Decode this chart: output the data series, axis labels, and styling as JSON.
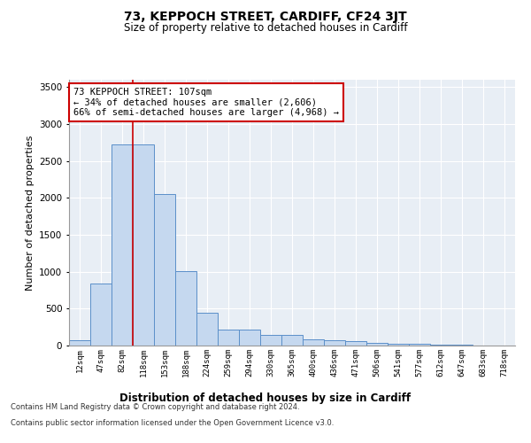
{
  "title": "73, KEPPOCH STREET, CARDIFF, CF24 3JT",
  "subtitle": "Size of property relative to detached houses in Cardiff",
  "xlabel": "Distribution of detached houses by size in Cardiff",
  "ylabel": "Number of detached properties",
  "categories": [
    "12sqm",
    "47sqm",
    "82sqm",
    "118sqm",
    "153sqm",
    "188sqm",
    "224sqm",
    "259sqm",
    "294sqm",
    "330sqm",
    "365sqm",
    "400sqm",
    "436sqm",
    "471sqm",
    "506sqm",
    "541sqm",
    "577sqm",
    "612sqm",
    "647sqm",
    "683sqm",
    "718sqm"
  ],
  "values": [
    75,
    840,
    2720,
    2720,
    2050,
    1010,
    450,
    220,
    215,
    145,
    140,
    85,
    70,
    55,
    40,
    30,
    28,
    18,
    10,
    5,
    3
  ],
  "bar_color": "#c5d8ef",
  "bar_edge_color": "#5b8fc9",
  "vline_color": "#cc0000",
  "annotation_text": "73 KEPPOCH STREET: 107sqm\n← 34% of detached houses are smaller (2,606)\n66% of semi-detached houses are larger (4,968) →",
  "annotation_box_color": "#ffffff",
  "annotation_box_edge": "#cc0000",
  "ylim": [
    0,
    3600
  ],
  "yticks": [
    0,
    500,
    1000,
    1500,
    2000,
    2500,
    3000,
    3500
  ],
  "plot_bg": "#e8eef5",
  "grid_color": "#ffffff",
  "footer_line1": "Contains HM Land Registry data © Crown copyright and database right 2024.",
  "footer_line2": "Contains public sector information licensed under the Open Government Licence v3.0."
}
